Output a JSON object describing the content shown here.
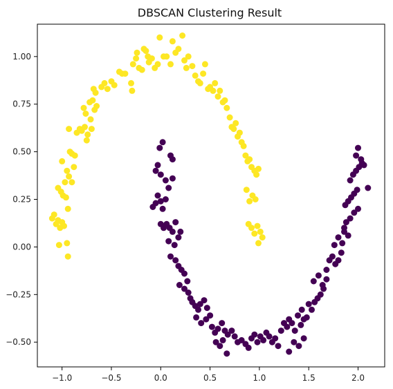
{
  "chart_data": {
    "type": "scatter",
    "title": "DBSCAN Clustering Result",
    "xlabel": "",
    "ylabel": "",
    "xlim": [
      -1.25,
      2.27
    ],
    "ylim": [
      -0.63,
      1.17
    ],
    "xticks": [
      -1.0,
      -0.5,
      0.0,
      0.5,
      1.0,
      1.5,
      2.0
    ],
    "xtick_labels": [
      "−1.0",
      "−0.5",
      "0.0",
      "0.5",
      "1.0",
      "1.5",
      "2.0"
    ],
    "yticks": [
      -0.5,
      -0.25,
      0.0,
      0.25,
      0.5,
      0.75,
      1.0
    ],
    "ytick_labels": [
      "−0.50",
      "−0.25",
      "0.00",
      "0.25",
      "0.50",
      "0.75",
      "1.00"
    ],
    "grid": false,
    "series": [
      {
        "color": "#fde725",
        "points": [
          [
            -1.1,
            0.15
          ],
          [
            -1.08,
            0.17
          ],
          [
            -1.06,
            0.12
          ],
          [
            -1.04,
            0.14
          ],
          [
            -1.02,
            0.1
          ],
          [
            -1.0,
            0.13
          ],
          [
            -0.98,
            0.11
          ],
          [
            -1.03,
            0.01
          ],
          [
            -0.95,
            0.02
          ],
          [
            -0.94,
            -0.05
          ],
          [
            -1.04,
            0.31
          ],
          [
            -1.01,
            0.29
          ],
          [
            -0.99,
            0.27
          ],
          [
            -0.96,
            0.26
          ],
          [
            -0.94,
            0.2
          ],
          [
            -0.97,
            0.34
          ],
          [
            -1.0,
            0.45
          ],
          [
            -0.95,
            0.4
          ],
          [
            -0.93,
            0.37
          ],
          [
            -0.9,
            0.34
          ],
          [
            -0.88,
            0.42
          ],
          [
            -0.92,
            0.5
          ],
          [
            -0.9,
            0.49
          ],
          [
            -0.87,
            0.48
          ],
          [
            -0.93,
            0.62
          ],
          [
            -0.85,
            0.6
          ],
          [
            -0.82,
            0.62
          ],
          [
            -0.8,
            0.61
          ],
          [
            -0.77,
            0.63
          ],
          [
            -0.74,
            0.59
          ],
          [
            -0.7,
            0.62
          ],
          [
            -0.75,
            0.56
          ],
          [
            -0.71,
            0.67
          ],
          [
            -0.78,
            0.73
          ],
          [
            -0.76,
            0.7
          ],
          [
            -0.72,
            0.76
          ],
          [
            -0.69,
            0.77
          ],
          [
            -0.67,
            0.72
          ],
          [
            -0.65,
            0.74
          ],
          [
            -0.68,
            0.83
          ],
          [
            -0.66,
            0.81
          ],
          [
            -0.6,
            0.84
          ],
          [
            -0.57,
            0.86
          ],
          [
            -0.54,
            0.83
          ],
          [
            -0.5,
            0.87
          ],
          [
            -0.47,
            0.85
          ],
          [
            -0.42,
            0.92
          ],
          [
            -0.39,
            0.91
          ],
          [
            -0.36,
            0.91
          ],
          [
            -0.3,
            0.86
          ],
          [
            -0.29,
            0.82
          ],
          [
            -0.28,
            0.96
          ],
          [
            -0.25,
            0.99
          ],
          [
            -0.22,
            0.94
          ],
          [
            -0.24,
            1.02
          ],
          [
            -0.19,
            0.93
          ],
          [
            -0.17,
            1.04
          ],
          [
            -0.15,
            1.03
          ],
          [
            -0.13,
            1.0
          ],
          [
            -0.12,
            0.97
          ],
          [
            -0.09,
            0.99
          ],
          [
            -0.06,
            0.94
          ],
          [
            -0.03,
            0.96
          ],
          [
            -0.01,
            1.1
          ],
          [
            0.03,
            1.0
          ],
          [
            0.06,
            1.0
          ],
          [
            0.1,
            0.96
          ],
          [
            0.12,
            1.08
          ],
          [
            0.15,
            1.02
          ],
          [
            0.18,
            1.04
          ],
          [
            0.22,
            1.11
          ],
          [
            0.24,
            0.98
          ],
          [
            0.26,
            0.94
          ],
          [
            0.28,
            1.0
          ],
          [
            0.32,
            0.95
          ],
          [
            0.35,
            0.9
          ],
          [
            0.38,
            0.87
          ],
          [
            0.4,
            0.86
          ],
          [
            0.43,
            0.91
          ],
          [
            0.45,
            0.96
          ],
          [
            0.48,
            0.83
          ],
          [
            0.5,
            0.84
          ],
          [
            0.53,
            0.82
          ],
          [
            0.55,
            0.86
          ],
          [
            0.58,
            0.79
          ],
          [
            0.6,
            0.82
          ],
          [
            0.63,
            0.76
          ],
          [
            0.65,
            0.77
          ],
          [
            0.67,
            0.73
          ],
          [
            0.7,
            0.68
          ],
          [
            0.72,
            0.63
          ],
          [
            0.74,
            0.62
          ],
          [
            0.76,
            0.65
          ],
          [
            0.78,
            0.58
          ],
          [
            0.8,
            0.6
          ],
          [
            0.82,
            0.55
          ],
          [
            0.84,
            0.53
          ],
          [
            0.86,
            0.48
          ],
          [
            0.88,
            0.45
          ],
          [
            0.9,
            0.46
          ],
          [
            0.92,
            0.42
          ],
          [
            0.95,
            0.4
          ],
          [
            0.97,
            0.38
          ],
          [
            0.99,
            0.41
          ],
          [
            0.87,
            0.3
          ],
          [
            0.9,
            0.24
          ],
          [
            0.93,
            0.27
          ],
          [
            0.96,
            0.25
          ],
          [
            0.89,
            0.12
          ],
          [
            0.92,
            0.1
          ],
          [
            0.95,
            0.07
          ],
          [
            0.98,
            0.11
          ],
          [
            1.01,
            0.08
          ],
          [
            1.03,
            0.05
          ],
          [
            0.99,
            0.02
          ]
        ]
      },
      {
        "color": "#440154",
        "points": [
          [
            -0.08,
            0.21
          ],
          [
            -0.05,
            0.23
          ],
          [
            -0.03,
            0.27
          ],
          [
            0.0,
            0.24
          ],
          [
            0.02,
            0.2
          ],
          [
            0.05,
            0.25
          ],
          [
            -0.05,
            0.4
          ],
          [
            -0.03,
            0.43
          ],
          [
            0.0,
            0.38
          ],
          [
            -0.01,
            0.52
          ],
          [
            0.02,
            0.55
          ],
          [
            0.05,
            0.35
          ],
          [
            0.1,
            0.48
          ],
          [
            0.12,
            0.46
          ],
          [
            0.08,
            0.31
          ],
          [
            0.12,
            0.36
          ],
          [
            0.0,
            0.12
          ],
          [
            0.03,
            0.1
          ],
          [
            0.06,
            0.12
          ],
          [
            0.09,
            0.1
          ],
          [
            0.12,
            0.08
          ],
          [
            0.15,
            0.13
          ],
          [
            0.08,
            0.03
          ],
          [
            0.14,
            0.01
          ],
          [
            0.18,
            0.05
          ],
          [
            0.2,
            0.08
          ],
          [
            0.1,
            -0.05
          ],
          [
            0.15,
            -0.07
          ],
          [
            0.18,
            -0.1
          ],
          [
            0.21,
            -0.12
          ],
          [
            0.24,
            -0.14
          ],
          [
            0.27,
            -0.18
          ],
          [
            0.19,
            -0.2
          ],
          [
            0.24,
            -0.22
          ],
          [
            0.28,
            -0.24
          ],
          [
            0.3,
            -0.27
          ],
          [
            0.32,
            -0.29
          ],
          [
            0.35,
            -0.31
          ],
          [
            0.38,
            -0.33
          ],
          [
            0.4,
            -0.3
          ],
          [
            0.44,
            -0.28
          ],
          [
            0.47,
            -0.32
          ],
          [
            0.36,
            -0.37
          ],
          [
            0.41,
            -0.4
          ],
          [
            0.46,
            -0.38
          ],
          [
            0.5,
            -0.36
          ],
          [
            0.52,
            -0.42
          ],
          [
            0.55,
            -0.45
          ],
          [
            0.58,
            -0.43
          ],
          [
            0.62,
            -0.4
          ],
          [
            0.65,
            -0.44
          ],
          [
            0.68,
            -0.46
          ],
          [
            0.56,
            -0.5
          ],
          [
            0.6,
            -0.52
          ],
          [
            0.63,
            -0.49
          ],
          [
            0.67,
            -0.56
          ],
          [
            0.72,
            -0.44
          ],
          [
            0.75,
            -0.47
          ],
          [
            0.78,
            -0.5
          ],
          [
            0.82,
            -0.49
          ],
          [
            0.86,
            -0.51
          ],
          [
            0.89,
            -0.53
          ],
          [
            0.92,
            -0.48
          ],
          [
            0.95,
            -0.46
          ],
          [
            0.98,
            -0.5
          ],
          [
            1.01,
            -0.47
          ],
          [
            1.04,
            -0.49
          ],
          [
            1.07,
            -0.45
          ],
          [
            1.1,
            -0.47
          ],
          [
            1.13,
            -0.5
          ],
          [
            1.16,
            -0.48
          ],
          [
            1.19,
            -0.52
          ],
          [
            1.22,
            -0.44
          ],
          [
            1.25,
            -0.4
          ],
          [
            1.28,
            -0.42
          ],
          [
            1.3,
            -0.38
          ],
          [
            1.33,
            -0.4
          ],
          [
            1.36,
            -0.44
          ],
          [
            1.39,
            -0.36
          ],
          [
            1.42,
            -0.41
          ],
          [
            1.45,
            -0.38
          ],
          [
            1.48,
            -0.37
          ],
          [
            1.3,
            -0.55
          ],
          [
            1.35,
            -0.5
          ],
          [
            1.4,
            -0.52
          ],
          [
            1.45,
            -0.48
          ],
          [
            1.43,
            -0.33
          ],
          [
            1.5,
            -0.3
          ],
          [
            1.53,
            -0.33
          ],
          [
            1.56,
            -0.29
          ],
          [
            1.59,
            -0.27
          ],
          [
            1.62,
            -0.25
          ],
          [
            1.65,
            -0.22
          ],
          [
            1.55,
            -0.18
          ],
          [
            1.6,
            -0.15
          ],
          [
            1.64,
            -0.2
          ],
          [
            1.68,
            -0.17
          ],
          [
            1.68,
            -0.12
          ],
          [
            1.71,
            -0.07
          ],
          [
            1.74,
            -0.05
          ],
          [
            1.77,
            -0.09
          ],
          [
            1.8,
            -0.07
          ],
          [
            1.83,
            -0.03
          ],
          [
            1.76,
            0.01
          ],
          [
            1.8,
            0.05
          ],
          [
            1.84,
            0.02
          ],
          [
            1.86,
            0.08
          ],
          [
            1.9,
            0.06
          ],
          [
            1.86,
            0.1
          ],
          [
            1.88,
            0.13
          ],
          [
            1.92,
            0.15
          ],
          [
            1.96,
            0.18
          ],
          [
            2.0,
            0.2
          ],
          [
            1.87,
            0.22
          ],
          [
            1.9,
            0.24
          ],
          [
            1.93,
            0.26
          ],
          [
            1.96,
            0.28
          ],
          [
            1.99,
            0.3
          ],
          [
            1.92,
            0.35
          ],
          [
            1.95,
            0.38
          ],
          [
            1.98,
            0.4
          ],
          [
            2.01,
            0.42
          ],
          [
            2.04,
            0.44
          ],
          [
            1.98,
            0.48
          ],
          [
            2.0,
            0.52
          ],
          [
            2.03,
            0.46
          ],
          [
            2.06,
            0.43
          ],
          [
            2.1,
            0.31
          ]
        ]
      }
    ]
  }
}
